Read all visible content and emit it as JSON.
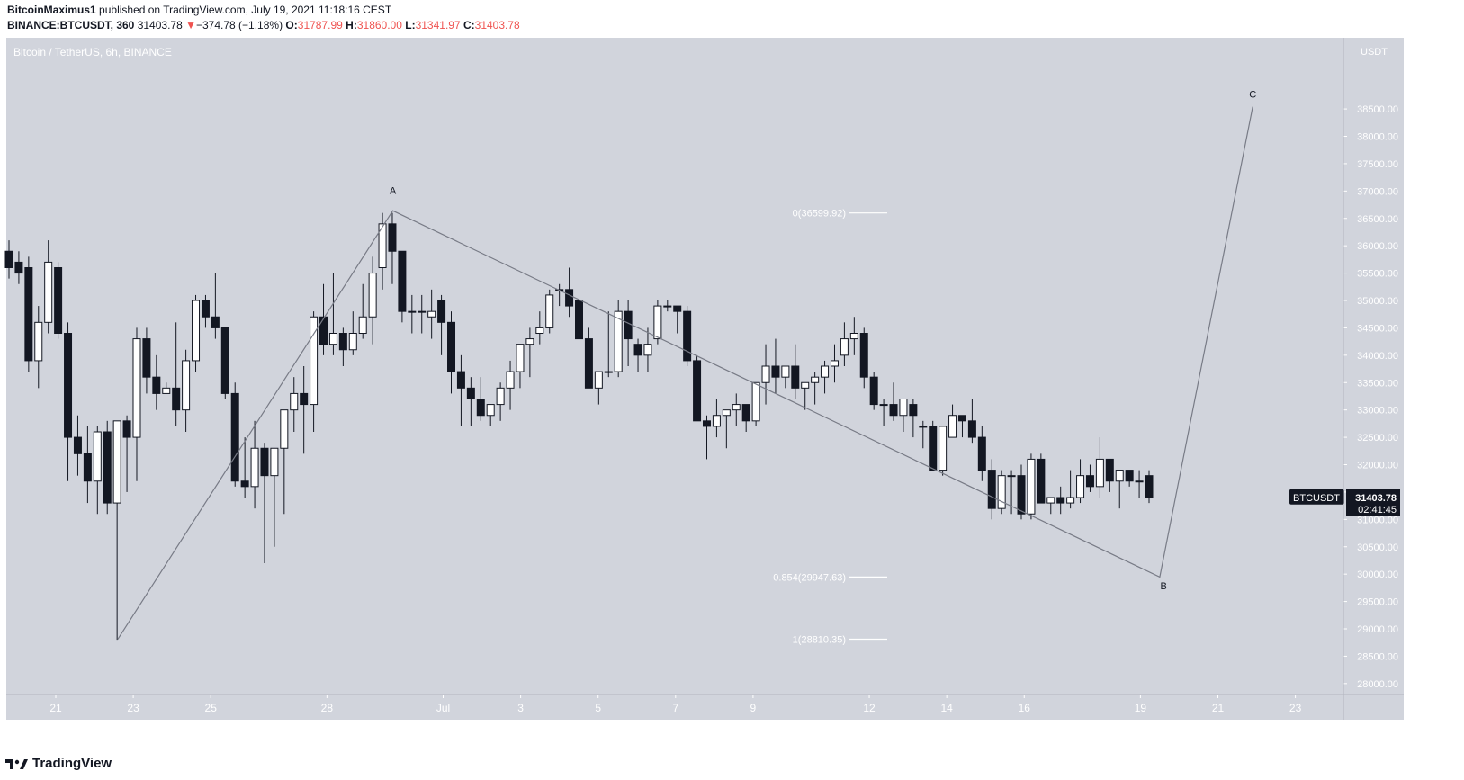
{
  "header": {
    "publisher": "BitcoinMaximus1",
    "published_text": "published on TradingView.com, July 19, 2021 11:18:16 CEST",
    "symbol": "BINANCE:BTCUSDT, 360",
    "last": "31403.78",
    "change_arrow": "▼",
    "change": "−374.78 (−1.18%)",
    "o_label": "O:",
    "o_value": "31787.99",
    "h_label": "H:",
    "h_value": "31860.00",
    "l_label": "L:",
    "l_value": "31341.97",
    "c_label": "C:",
    "c_value": "31403.78"
  },
  "footer": {
    "brand": "TradingView",
    "logo_icon": "tradingview-logo-icon"
  },
  "colors": {
    "plot_bg": "#d1d4dc",
    "bull": "#ffffff",
    "bear": "#131722",
    "price_tag_bg": "#131722",
    "text": "#131722"
  },
  "chart_data": {
    "type": "candlestick",
    "title": "Bitcoin / TetherUS, 6h, BINANCE",
    "xlabel": "",
    "ylabel": "USDT",
    "ylim": [
      27800,
      39800
    ],
    "y_ticks": [
      28000,
      28500,
      29000,
      29500,
      30000,
      30500,
      31000,
      31500,
      32000,
      32500,
      33000,
      33500,
      34000,
      34500,
      35000,
      35500,
      36000,
      36500,
      37000,
      37500,
      38000,
      38500
    ],
    "x_range_days": [
      19.8,
      37.3
    ],
    "x_ticks": [
      {
        "day": 21,
        "label": "21"
      },
      {
        "day": 23,
        "label": "23"
      },
      {
        "day": 25,
        "label": "25"
      },
      {
        "day": 28,
        "label": "28"
      },
      {
        "day": 31,
        "label": "Jul"
      },
      {
        "day": 33,
        "label": "3"
      },
      {
        "day": 35,
        "label": "5"
      },
      {
        "day": 37,
        "label": "7"
      },
      {
        "day": 39,
        "label": "9"
      },
      {
        "day": 42,
        "label": "12"
      },
      {
        "day": 44,
        "label": "14"
      },
      {
        "day": 46,
        "label": "16"
      },
      {
        "day": 49,
        "label": "19"
      },
      {
        "day": 51,
        "label": "21"
      },
      {
        "day": 53,
        "label": "23"
      }
    ],
    "candles_ohlc": [
      [
        35900,
        36100,
        35400,
        35600
      ],
      [
        35700,
        35900,
        35300,
        35500
      ],
      [
        35600,
        35800,
        33700,
        33900
      ],
      [
        33900,
        34900,
        33400,
        34600
      ],
      [
        34600,
        36100,
        34400,
        35700
      ],
      [
        35600,
        35700,
        34300,
        34400
      ],
      [
        34400,
        34600,
        31700,
        32500
      ],
      [
        32500,
        32900,
        31800,
        32200
      ],
      [
        32200,
        32700,
        31300,
        31700
      ],
      [
        31700,
        32700,
        31100,
        32600
      ],
      [
        32600,
        32800,
        31100,
        31300
      ],
      [
        31300,
        32800,
        28800,
        32800
      ],
      [
        32800,
        32900,
        31500,
        32500
      ],
      [
        32500,
        34500,
        31700,
        34300
      ],
      [
        34300,
        34500,
        33300,
        33600
      ],
      [
        33600,
        34000,
        33000,
        33300
      ],
      [
        33300,
        33500,
        33300,
        33400
      ],
      [
        33400,
        34600,
        32700,
        33000
      ],
      [
        33000,
        34100,
        32600,
        33900
      ],
      [
        33900,
        35100,
        33700,
        35000
      ],
      [
        35000,
        35100,
        34500,
        34700
      ],
      [
        34700,
        35500,
        34300,
        34500
      ],
      [
        34500,
        34500,
        33200,
        33300
      ],
      [
        33300,
        33500,
        31600,
        31700
      ],
      [
        31700,
        32500,
        31400,
        31600
      ],
      [
        31600,
        32800,
        31200,
        32300
      ],
      [
        32300,
        32400,
        30200,
        31800
      ],
      [
        31800,
        32000,
        30500,
        32300
      ],
      [
        32300,
        33000,
        31100,
        33000
      ],
      [
        33000,
        33600,
        32600,
        33300
      ],
      [
        33300,
        33800,
        32200,
        33100
      ],
      [
        33100,
        34800,
        32600,
        34700
      ],
      [
        34700,
        35300,
        34000,
        34200
      ],
      [
        34200,
        35500,
        34000,
        34400
      ],
      [
        34400,
        34500,
        33800,
        34100
      ],
      [
        34100,
        34800,
        34000,
        34400
      ],
      [
        34400,
        35300,
        34300,
        34700
      ],
      [
        34700,
        35800,
        34200,
        35500
      ],
      [
        35600,
        36600,
        35200,
        36400
      ],
      [
        36400,
        36600,
        35300,
        35900
      ],
      [
        35900,
        35900,
        34600,
        34800
      ],
      [
        34800,
        35100,
        34400,
        34800
      ],
      [
        34800,
        35100,
        34400,
        34800
      ],
      [
        34700,
        35200,
        34300,
        34800
      ],
      [
        35000,
        35100,
        34000,
        34600
      ],
      [
        34600,
        34800,
        33300,
        33700
      ],
      [
        33700,
        34000,
        32700,
        33400
      ],
      [
        33400,
        33600,
        32700,
        33200
      ],
      [
        33200,
        33600,
        32800,
        32900
      ],
      [
        32900,
        33100,
        32700,
        33100
      ],
      [
        33100,
        33500,
        32800,
        33400
      ],
      [
        33400,
        33900,
        33000,
        33700
      ],
      [
        33700,
        34000,
        33400,
        34200
      ],
      [
        34200,
        34500,
        33600,
        34300
      ],
      [
        34400,
        34800,
        34200,
        34500
      ],
      [
        34500,
        35200,
        34400,
        35100
      ],
      [
        35200,
        35300,
        34900,
        35200
      ],
      [
        35200,
        35600,
        34700,
        34900
      ],
      [
        35000,
        35100,
        33500,
        34300
      ],
      [
        34300,
        34500,
        33500,
        33400
      ],
      [
        33400,
        33600,
        33100,
        33700
      ],
      [
        33700,
        34800,
        33600,
        33700
      ],
      [
        33700,
        35000,
        33600,
        34800
      ],
      [
        34800,
        35000,
        33800,
        34300
      ],
      [
        34200,
        34300,
        33700,
        34000
      ],
      [
        34000,
        34500,
        33700,
        34200
      ],
      [
        34300,
        35000,
        34200,
        34900
      ],
      [
        34900,
        35000,
        34800,
        34900
      ],
      [
        34900,
        34900,
        34400,
        34800
      ],
      [
        34800,
        34900,
        33800,
        33900
      ],
      [
        33900,
        34000,
        33000,
        32800
      ],
      [
        32800,
        32900,
        32100,
        32700
      ],
      [
        32700,
        33200,
        32500,
        32900
      ],
      [
        32900,
        33000,
        32300,
        33000
      ],
      [
        33000,
        33300,
        32700,
        33100
      ],
      [
        33100,
        33100,
        32600,
        32800
      ],
      [
        32800,
        33200,
        32700,
        33500
      ],
      [
        33500,
        34200,
        33100,
        33800
      ],
      [
        33800,
        34300,
        33300,
        33600
      ],
      [
        33600,
        33800,
        33400,
        33800
      ],
      [
        33800,
        34200,
        33200,
        33400
      ],
      [
        33400,
        33500,
        33000,
        33500
      ],
      [
        33500,
        33700,
        33100,
        33600
      ],
      [
        33600,
        33900,
        33300,
        33800
      ],
      [
        33800,
        34200,
        33500,
        33900
      ],
      [
        34000,
        34600,
        33800,
        34300
      ],
      [
        34300,
        34700,
        34000,
        34400
      ],
      [
        34400,
        34500,
        33400,
        33600
      ],
      [
        33600,
        33700,
        33000,
        33100
      ],
      [
        33100,
        33200,
        32700,
        33100
      ],
      [
        33100,
        33500,
        32800,
        32900
      ],
      [
        32900,
        33200,
        32600,
        33200
      ],
      [
        33100,
        33200,
        32500,
        32900
      ],
      [
        32700,
        32800,
        32300,
        32700
      ],
      [
        32700,
        32800,
        31900,
        31900
      ],
      [
        31900,
        32700,
        31800,
        32700
      ],
      [
        32500,
        33100,
        32500,
        32900
      ],
      [
        32900,
        32900,
        32500,
        32800
      ],
      [
        32800,
        33200,
        32400,
        32500
      ],
      [
        32500,
        32700,
        31700,
        31900
      ],
      [
        31900,
        32100,
        31000,
        31200
      ],
      [
        31200,
        31900,
        31100,
        31800
      ],
      [
        31800,
        31900,
        31100,
        31800
      ],
      [
        31800,
        32000,
        31000,
        31100
      ],
      [
        31100,
        32200,
        31000,
        32100
      ],
      [
        32100,
        32200,
        31300,
        31300
      ],
      [
        31300,
        31400,
        31100,
        31400
      ],
      [
        31400,
        31600,
        31100,
        31300
      ],
      [
        31300,
        31900,
        31200,
        31400
      ],
      [
        31400,
        32100,
        31300,
        31800
      ],
      [
        31800,
        32000,
        31500,
        31600
      ],
      [
        31600,
        32500,
        31400,
        32100
      ],
      [
        32100,
        32100,
        31500,
        31700
      ],
      [
        31700,
        31900,
        31200,
        31900
      ],
      [
        31900,
        31900,
        31600,
        31700
      ],
      [
        31700,
        31900,
        31400,
        31700
      ],
      [
        31800,
        31900,
        31300,
        31400
      ]
    ],
    "annotations": [
      {
        "text": "A",
        "day": 29.7,
        "price": 36950
      },
      {
        "text": "B",
        "day": 49.6,
        "price": 29725
      },
      {
        "text": "C",
        "day": 51.9,
        "price": 38710
      }
    ],
    "wave_path": [
      {
        "day": 22.6,
        "price": 28810
      },
      {
        "day": 29.7,
        "price": 36640
      },
      {
        "day": 49.5,
        "price": 29947
      },
      {
        "day": 51.9,
        "price": 38540
      }
    ],
    "fib_levels": [
      {
        "label": "0(36599.92)",
        "value": 36599.92
      },
      {
        "label": "0.854(29947.63)",
        "value": 29947.63
      },
      {
        "label": "1(28810.35)",
        "value": 28810.35
      }
    ],
    "price_tag": {
      "symbol": "BTCUSDT",
      "price": "31403.78",
      "countdown": "02:41:45",
      "value": 31403.78
    },
    "axis_unit": "USDT",
    "legend": "top-left"
  }
}
